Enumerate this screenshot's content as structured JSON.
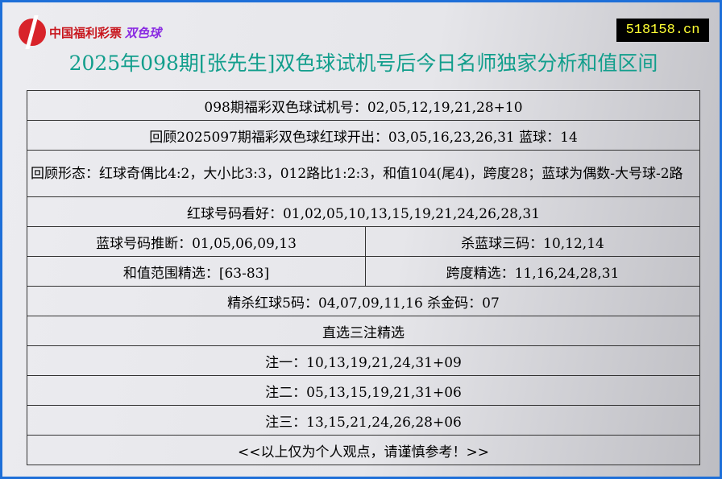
{
  "header": {
    "logo_text": "中国福利彩票",
    "logo_sub": "双色球",
    "site": "518158.cn",
    "title": "2025年098期[张先生]双色球试机号后今日名师独家分析和值区间"
  },
  "rows": {
    "r1": "098期福彩双色球试机号：02,05,12,19,21,28+10",
    "r2": "回顾2025097期福彩双色球红球开出：03,05,16,23,26,31 蓝球：14",
    "r3": "回顾形态：红球奇偶比4:2，大小比3:3，012路比1:2:3，和值104(尾4)，跨度28；蓝球为偶数-大号球-2路",
    "r4": "红球号码看好：01,02,05,10,13,15,19,21,24,26,28,31",
    "r5a": "蓝球号码推断：01,05,06,09,13",
    "r5b": "杀蓝球三码：10,12,14",
    "r6a": "和值范围精选：[63-83]",
    "r6b": "跨度精选：11,16,24,28,31",
    "r7": "精杀红球5码：04,07,09,11,16 杀金码：07",
    "r8": "直选三注精选",
    "r9": "注一：10,13,19,21,24,31+09",
    "r10": "注二：05,13,15,19,21,31+06",
    "r11": "注三：13,15,21,24,26,28+06",
    "r12": "<<以上仅为个人观点，请谨慎参考！>>"
  }
}
